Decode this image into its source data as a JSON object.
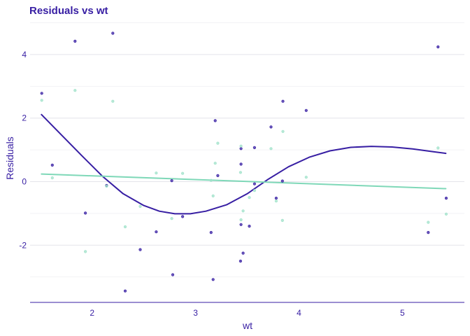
{
  "chart_data": {
    "type": "scatter",
    "title": "Residuals vs wt",
    "xlabel": "wt",
    "ylabel": "Residuals",
    "xlim": [
      1.4,
      5.6
    ],
    "ylim": [
      -3.8,
      5.1
    ],
    "x_ticks": [
      2,
      3,
      4,
      5
    ],
    "y_ticks": [
      -2,
      0,
      2,
      4
    ],
    "y_tick_labels": [
      "-2",
      "0",
      "2",
      "4"
    ],
    "grid": true,
    "legend": "none",
    "colors": {
      "title": "#371ea3",
      "axis_text": "#371ea3",
      "grid": "#f0f0f4",
      "axis_line": "#371ea3"
    },
    "series": [
      {
        "color": "#371ea3",
        "points": [
          [
            1.513,
            2.78
          ],
          [
            1.615,
            0.52
          ],
          [
            1.835,
            4.42
          ],
          [
            1.935,
            -0.99
          ],
          [
            2.14,
            -0.12
          ],
          [
            2.2,
            4.67
          ],
          [
            2.32,
            -3.44
          ],
          [
            2.465,
            -2.14
          ],
          [
            2.62,
            -1.58
          ],
          [
            2.77,
            0.03
          ],
          [
            2.78,
            -2.93
          ],
          [
            2.875,
            -1.1
          ],
          [
            3.15,
            -1.6
          ],
          [
            3.17,
            -3.08
          ],
          [
            3.19,
            1.92
          ],
          [
            3.215,
            0.19
          ],
          [
            3.435,
            -2.5
          ],
          [
            3.44,
            0.55
          ],
          [
            3.44,
            1.04
          ],
          [
            3.44,
            -1.35
          ],
          [
            3.46,
            -2.25
          ],
          [
            3.52,
            -1.4
          ],
          [
            3.57,
            1.07
          ],
          [
            3.57,
            -0.07
          ],
          [
            3.73,
            1.72
          ],
          [
            3.78,
            -0.52
          ],
          [
            3.84,
            0.02
          ],
          [
            3.845,
            2.53
          ],
          [
            4.07,
            2.24
          ],
          [
            5.25,
            -1.6
          ],
          [
            5.345,
            4.24
          ],
          [
            5.424,
            -0.52
          ]
        ]
      },
      {
        "color": "#9fe2c9",
        "points": [
          [
            1.513,
            2.56
          ],
          [
            1.615,
            0.12
          ],
          [
            1.835,
            2.87
          ],
          [
            1.935,
            -2.2
          ],
          [
            2.14,
            -0.14
          ],
          [
            2.2,
            2.53
          ],
          [
            2.32,
            -1.42
          ],
          [
            2.465,
            -0.78
          ],
          [
            2.62,
            0.27
          ],
          [
            2.77,
            -1.16
          ],
          [
            2.875,
            0.26
          ],
          [
            3.15,
            0.04
          ],
          [
            3.17,
            -0.45
          ],
          [
            3.19,
            0.58
          ],
          [
            3.215,
            1.21
          ],
          [
            3.435,
            0.29
          ],
          [
            3.44,
            -1.2
          ],
          [
            3.44,
            1.12
          ],
          [
            3.46,
            -0.92
          ],
          [
            3.52,
            -0.5
          ],
          [
            3.57,
            -0.28
          ],
          [
            3.73,
            1.04
          ],
          [
            3.78,
            -0.61
          ],
          [
            3.84,
            -1.22
          ],
          [
            3.845,
            1.58
          ],
          [
            4.07,
            0.14
          ],
          [
            5.25,
            -1.28
          ],
          [
            5.345,
            1.06
          ],
          [
            5.424,
            -1.02
          ]
        ]
      }
    ],
    "smooth_lines": [
      {
        "color": "#371ea3",
        "points": [
          [
            1.51,
            2.11
          ],
          [
            1.7,
            1.48
          ],
          [
            1.9,
            0.82
          ],
          [
            2.1,
            0.17
          ],
          [
            2.3,
            -0.38
          ],
          [
            2.5,
            -0.75
          ],
          [
            2.65,
            -0.93
          ],
          [
            2.8,
            -1.01
          ],
          [
            2.95,
            -1.01
          ],
          [
            3.1,
            -0.93
          ],
          [
            3.3,
            -0.73
          ],
          [
            3.5,
            -0.38
          ],
          [
            3.7,
            0.07
          ],
          [
            3.9,
            0.47
          ],
          [
            4.1,
            0.77
          ],
          [
            4.3,
            0.97
          ],
          [
            4.5,
            1.08
          ],
          [
            4.7,
            1.11
          ],
          [
            4.9,
            1.09
          ],
          [
            5.1,
            1.03
          ],
          [
            5.3,
            0.94
          ],
          [
            5.42,
            0.89
          ]
        ]
      },
      {
        "color": "#7fd8b8",
        "points": [
          [
            1.51,
            0.24
          ],
          [
            5.42,
            -0.22
          ]
        ]
      }
    ]
  }
}
